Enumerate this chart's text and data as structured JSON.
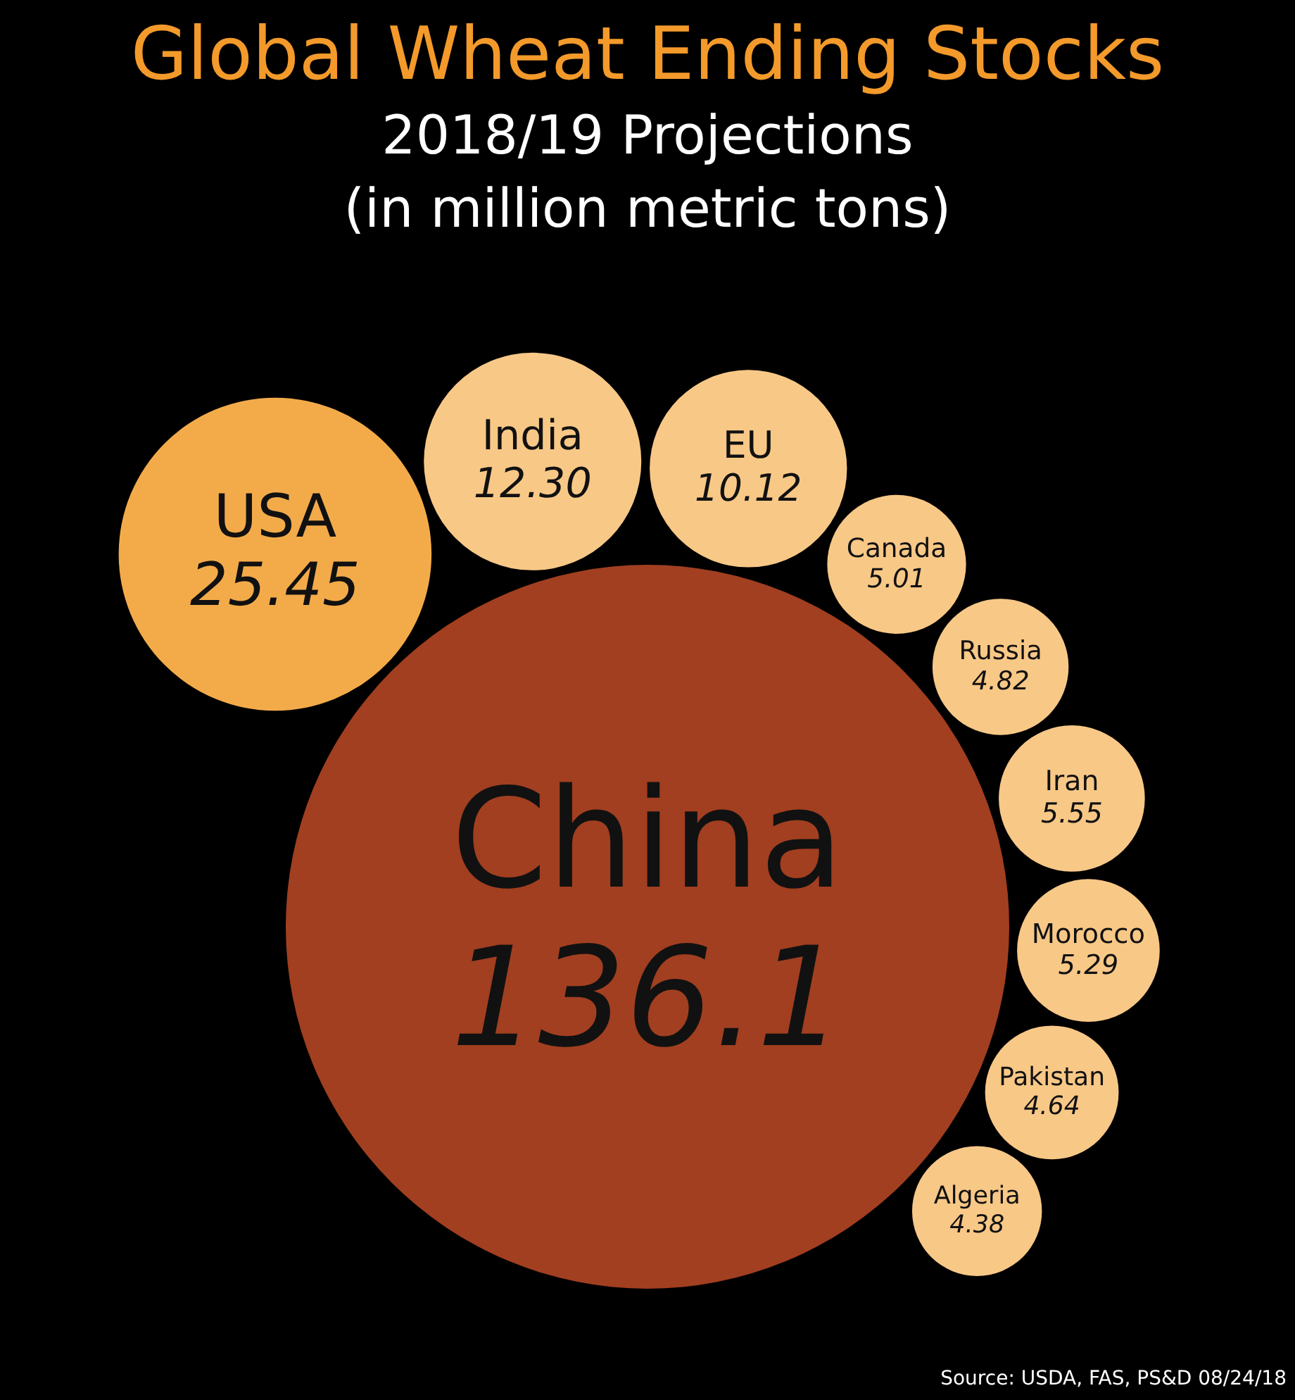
{
  "chart_data": {
    "type": "other",
    "title": "Global Wheat Ending Stocks",
    "subtitle": "2018/19 Projections\n(in million metric tons)",
    "categories": [
      "China",
      "USA",
      "India",
      "EU",
      "Canada",
      "Russia",
      "Iran",
      "Morocco",
      "Pakistan",
      "Algeria"
    ],
    "values": [
      136.1,
      25.45,
      12.3,
      10.12,
      5.01,
      4.82,
      5.55,
      5.29,
      4.64,
      4.38
    ],
    "value_labels": [
      "136.1",
      "25.45",
      "12.30",
      "10.12",
      "5.01",
      "4.82",
      "5.55",
      "5.29",
      "4.64",
      "4.38"
    ],
    "colors": [
      "#a13f20",
      "#f3ab4a",
      "#f8c887",
      "#f8c887",
      "#f8c887",
      "#f8c887",
      "#f8c887",
      "#f8c887",
      "#f8c887",
      "#f8c887"
    ],
    "annotations": [
      "Source: USDA, FAS, PS&D 08/24/18"
    ]
  }
}
